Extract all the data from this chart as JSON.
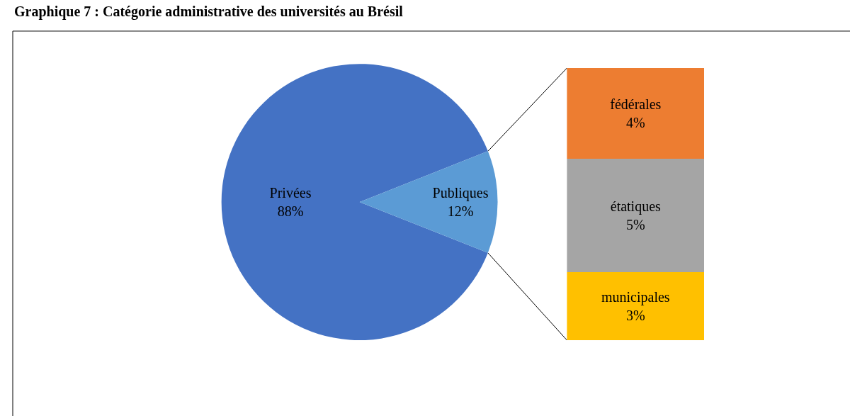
{
  "chart_data": [
    {
      "type": "pie",
      "title": "Graphique 7 : Catégorie administrative des universités au Brésil",
      "categories": [
        "Privées",
        "Publiques"
      ],
      "values": [
        88,
        12
      ],
      "value_labels": [
        "88%",
        "12%"
      ],
      "colors": [
        "#4472c4",
        "#5b9bd5"
      ]
    },
    {
      "type": "bar",
      "stacked": true,
      "categories": [
        null
      ],
      "series": [
        {
          "name": "municipales",
          "color": "#ffc000",
          "values": [
            3
          ],
          "value_labels": [
            "3%"
          ]
        },
        {
          "name": "étatiques",
          "color": "#a5a5a5",
          "values": [
            5
          ],
          "value_labels": [
            "5%"
          ]
        },
        {
          "name": "fédérales",
          "color": "#ed7d31",
          "values": [
            4
          ],
          "value_labels": [
            "4%"
          ]
        }
      ]
    }
  ]
}
